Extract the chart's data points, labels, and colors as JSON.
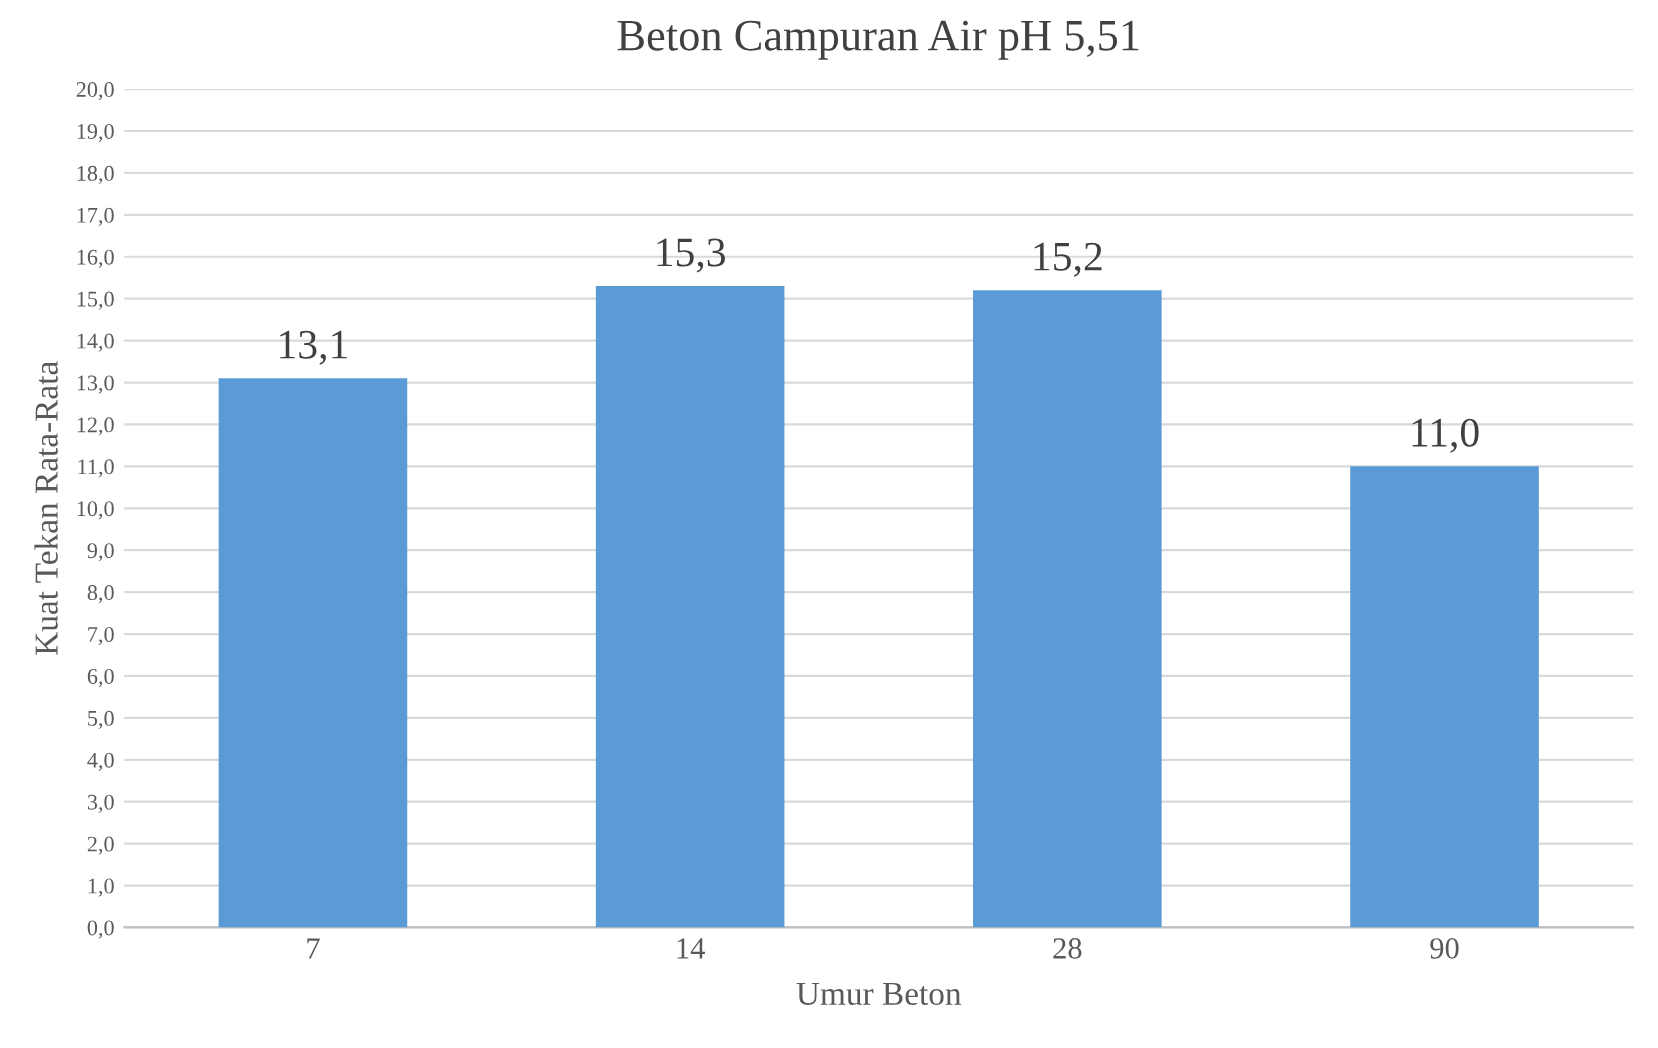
{
  "chart_data": {
    "type": "bar",
    "title": "Beton Campuran Air pH 5,51",
    "xlabel": "Umur Beton",
    "ylabel": "Kuat Tekan Rata-Rata",
    "categories": [
      "7",
      "14",
      "28",
      "90"
    ],
    "values": [
      13.1,
      15.3,
      15.2,
      11.0
    ],
    "value_labels": [
      "13,1",
      "15,3",
      "15,2",
      "11,0"
    ],
    "color": "#5b9bd5",
    "ylim": [
      0,
      20
    ],
    "yticks": [
      {
        "value": 0,
        "label": "0,0"
      },
      {
        "value": 1,
        "label": "1,0"
      },
      {
        "value": 2,
        "label": "2,0"
      },
      {
        "value": 3,
        "label": "3,0"
      },
      {
        "value": 4,
        "label": "4,0"
      },
      {
        "value": 5,
        "label": "5,0"
      },
      {
        "value": 6,
        "label": "6,0"
      },
      {
        "value": 7,
        "label": "7,0"
      },
      {
        "value": 8,
        "label": "8,0"
      },
      {
        "value": 9,
        "label": "9,0"
      },
      {
        "value": 10,
        "label": "10,0"
      },
      {
        "value": 11,
        "label": "11,0"
      },
      {
        "value": 12,
        "label": "12,0"
      },
      {
        "value": 13,
        "label": "13,0"
      },
      {
        "value": 14,
        "label": "14,0"
      },
      {
        "value": 15,
        "label": "15,0"
      },
      {
        "value": 16,
        "label": "16,0"
      },
      {
        "value": 17,
        "label": "17,0"
      },
      {
        "value": 18,
        "label": "18,0"
      },
      {
        "value": 19,
        "label": "19,0"
      },
      {
        "value": 20,
        "label": "20,0"
      }
    ],
    "grid": "y"
  }
}
